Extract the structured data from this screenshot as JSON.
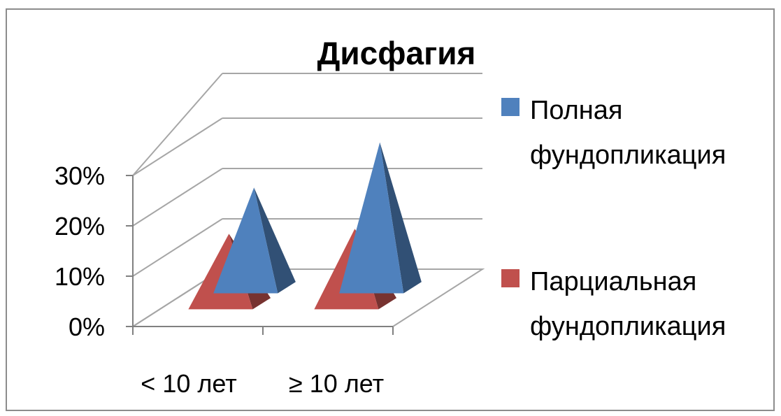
{
  "chart_data": {
    "type": "bar",
    "subtype": "3d-pyramid",
    "title": "Дисфагия",
    "categories": [
      "< 10 лет",
      "≥ 10 лет"
    ],
    "series": [
      {
        "name": "Полная фундопликация",
        "values": [
          0.21,
          0.3
        ],
        "color": "#4F81BD"
      },
      {
        "name": "Парциальная фундопликация",
        "values": [
          0.15,
          0.16
        ],
        "color": "#C0504D"
      }
    ],
    "yticks": [
      "0%",
      "10%",
      "20%",
      "30%"
    ],
    "ylim": [
      0,
      0.3
    ],
    "grid": true,
    "legend_position": "right"
  }
}
